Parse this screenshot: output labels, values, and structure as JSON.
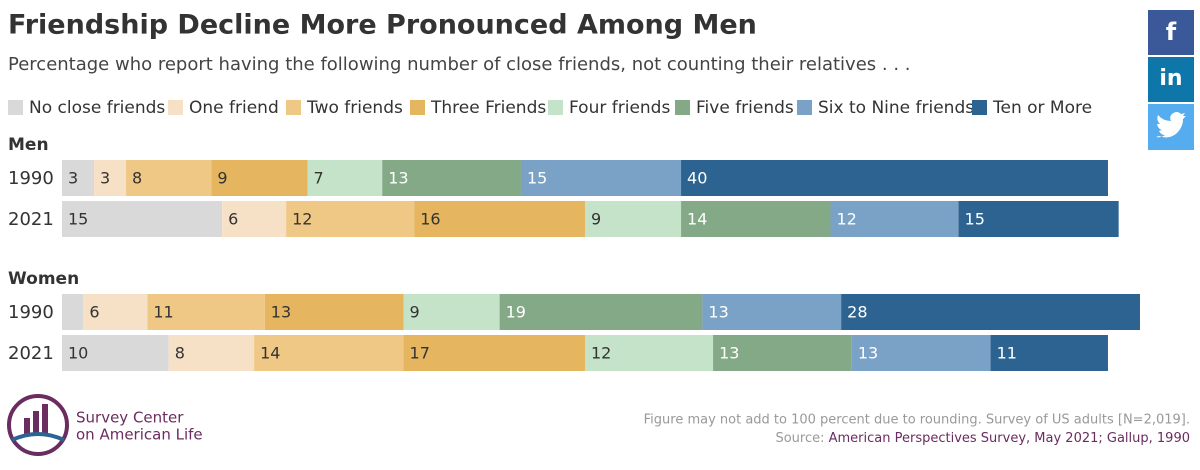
{
  "header": {
    "title": "Friendship Decline More Pronounced Among Men",
    "subtitle": "Percentage who report having the following number of close friends, not counting their relatives . . ."
  },
  "chart_data": [
    {
      "type": "bar",
      "stacked": true,
      "orientation": "horizontal",
      "title": "Men",
      "categories": [
        "1990",
        "2021"
      ],
      "series": [
        {
          "name": "No close friends",
          "color": "#d9d9d9",
          "values": [
            3,
            15
          ]
        },
        {
          "name": "One friend",
          "color": "#f7e1c6",
          "values": [
            3,
            6
          ]
        },
        {
          "name": "Two friends",
          "color": "#f0c886",
          "values": [
            8,
            12
          ]
        },
        {
          "name": "Three Friends",
          "color": "#e6b55f",
          "values": [
            9,
            16
          ]
        },
        {
          "name": "Four friends",
          "color": "#c5e3c9",
          "values": [
            7,
            9
          ]
        },
        {
          "name": "Five friends",
          "color": "#84a987",
          "values": [
            13,
            14
          ]
        },
        {
          "name": "Six to Nine friends",
          "color": "#7aa1c6",
          "values": [
            15,
            12
          ]
        },
        {
          "name": "Ten or More",
          "color": "#2c6390",
          "values": [
            40,
            15
          ]
        }
      ]
    },
    {
      "type": "bar",
      "stacked": true,
      "orientation": "horizontal",
      "title": "Women",
      "categories": [
        "1990",
        "2021"
      ],
      "series": [
        {
          "name": "No close friends",
          "color": "#d9d9d9",
          "values": [
            2,
            10
          ],
          "value_labels": [
            null,
            "10"
          ]
        },
        {
          "name": "One friend",
          "color": "#f7e1c6",
          "values": [
            6,
            8
          ]
        },
        {
          "name": "Two friends",
          "color": "#f0c886",
          "values": [
            11,
            14
          ]
        },
        {
          "name": "Three Friends",
          "color": "#e6b55f",
          "values": [
            13,
            17
          ]
        },
        {
          "name": "Four friends",
          "color": "#c5e3c9",
          "values": [
            9,
            12
          ]
        },
        {
          "name": "Five friends",
          "color": "#84a987",
          "values": [
            19,
            13
          ]
        },
        {
          "name": "Six to Nine friends",
          "color": "#7aa1c6",
          "values": [
            13,
            13
          ]
        },
        {
          "name": "Ten or More",
          "color": "#2c6390",
          "values": [
            28,
            11
          ]
        }
      ]
    }
  ],
  "footer": {
    "note": "Figure may not add to 100 percent due to rounding. Survey of US adults [N=2,019].",
    "source_label": "Source:",
    "source": "American Perspectives Survey, May 2021; Gallup, 1990"
  },
  "logo": {
    "line1": "Survey Center",
    "line2": "on American Life"
  },
  "share": {
    "facebook": "f",
    "linkedin": "in"
  }
}
